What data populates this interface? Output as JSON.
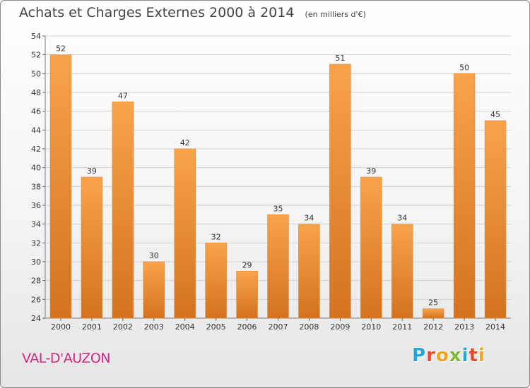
{
  "header": {
    "title": "Achats et Charges Externes 2000 à 2014",
    "subtitle": "(en milliers d'€)"
  },
  "footer": {
    "place": "VAL-D'AUZON",
    "logo_text": "Proxiti",
    "logo_letters": [
      {
        "ch": "P",
        "color": "#2aa6d6"
      },
      {
        "ch": "r",
        "color": "#e84a2a"
      },
      {
        "ch": "o",
        "color": "#f2a41e"
      },
      {
        "ch": "x",
        "color": "#7cbb32"
      },
      {
        "ch": "i",
        "color": "#2aa6d6"
      },
      {
        "ch": "t",
        "color": "#e84a2a"
      },
      {
        "ch": "i",
        "color": "#f2a41e"
      }
    ]
  },
  "colors": {
    "bar_light": "#f8a34b",
    "bar_dark": "#d4721f",
    "grid": "#d0d0d0",
    "place": "#cc2c7f"
  },
  "chart_data": {
    "type": "bar",
    "categories": [
      "2000",
      "2001",
      "2002",
      "2003",
      "2004",
      "2005",
      "2006",
      "2007",
      "2008",
      "2009",
      "2010",
      "2011",
      "2012",
      "2013",
      "2014"
    ],
    "values": [
      52,
      39,
      47,
      30,
      42,
      32,
      29,
      35,
      34,
      51,
      39,
      34,
      25,
      50,
      45
    ],
    "title": "Achats et Charges Externes 2000 à 2014",
    "subtitle": "(en milliers d'€)",
    "xlabel": "",
    "ylabel": "",
    "ylim": [
      24,
      54
    ],
    "yticks": [
      24,
      26,
      28,
      30,
      32,
      34,
      36,
      38,
      40,
      42,
      44,
      46,
      48,
      50,
      52,
      54
    ],
    "grid": true,
    "data_labels": true
  }
}
